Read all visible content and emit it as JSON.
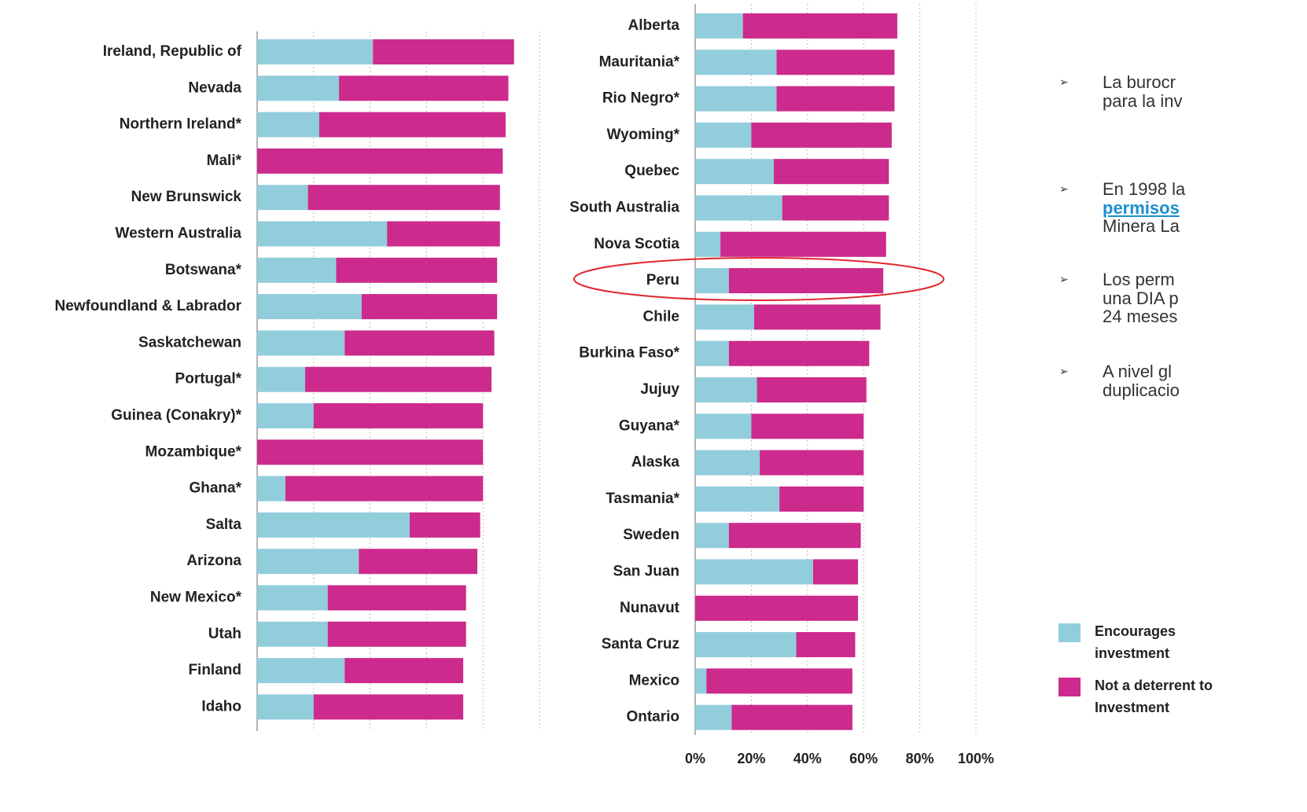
{
  "chart_data": [
    {
      "type": "bar",
      "orientation": "horizontal",
      "stacked": true,
      "categories": [
        "Ireland, Republic of",
        "Nevada",
        "Northern Ireland*",
        "Mali*",
        "New Brunswick",
        "Western Australia",
        "Botswana*",
        "Newfoundland & Labrador",
        "Saskatchewan",
        "Portugal*",
        "Guinea (Conakry)*",
        "Mozambique*",
        "Ghana*",
        "Salta",
        "Arizona",
        "New Mexico*",
        "Utah",
        "Finland",
        "Idaho"
      ],
      "series": [
        {
          "name": "Encourages investment",
          "color": "#92cddc",
          "values": [
            41,
            29,
            22,
            0,
            18,
            46,
            28,
            37,
            31,
            17,
            20,
            0,
            10,
            54,
            36,
            25,
            25,
            31,
            20
          ]
        },
        {
          "name": "Not a deterrent to Investment",
          "color": "#cc2a8c",
          "values": [
            50,
            60,
            66,
            87,
            68,
            40,
            57,
            48,
            53,
            66,
            60,
            80,
            70,
            25,
            42,
            49,
            49,
            42,
            53
          ]
        }
      ],
      "xlim": [
        0,
        100
      ]
    },
    {
      "type": "bar",
      "orientation": "horizontal",
      "stacked": true,
      "categories": [
        "Alberta",
        "Mauritania*",
        "Rio Negro*",
        "Wyoming*",
        "Quebec",
        "South Australia",
        "Nova Scotia",
        "Peru",
        "Chile",
        "Burkina Faso*",
        "Jujuy",
        "Guyana*",
        "Alaska",
        "Tasmania*",
        "Sweden",
        "San Juan",
        "Nunavut",
        "Santa Cruz",
        "Mexico",
        "Ontario"
      ],
      "series": [
        {
          "name": "Encourages investment",
          "color": "#92cddc",
          "values": [
            17,
            29,
            29,
            20,
            28,
            31,
            9,
            12,
            21,
            12,
            22,
            20,
            23,
            30,
            12,
            42,
            0,
            36,
            4,
            13
          ]
        },
        {
          "name": "Not a deterrent to Investment",
          "color": "#cc2a8c",
          "values": [
            55,
            42,
            42,
            50,
            41,
            38,
            59,
            55,
            45,
            50,
            39,
            40,
            37,
            30,
            47,
            16,
            58,
            21,
            52,
            43
          ]
        }
      ],
      "xlim": [
        0,
        100
      ],
      "xticks": [
        {
          "value": 0,
          "label": "0%"
        },
        {
          "value": 20,
          "label": "20%"
        },
        {
          "value": 40,
          "label": "40%"
        },
        {
          "value": 60,
          "label": "60%"
        },
        {
          "value": 80,
          "label": "80%"
        },
        {
          "value": 100,
          "label": "100%"
        }
      ]
    }
  ],
  "bullets": [
    [
      "La burocr",
      "para la inv"
    ],
    [
      "En 1998 la",
      "permisos",
      "Minera La"
    ],
    [
      "Los perm",
      "una DIA p",
      "24 meses"
    ],
    [
      "A nivel gl",
      "duplicacio"
    ]
  ]
}
